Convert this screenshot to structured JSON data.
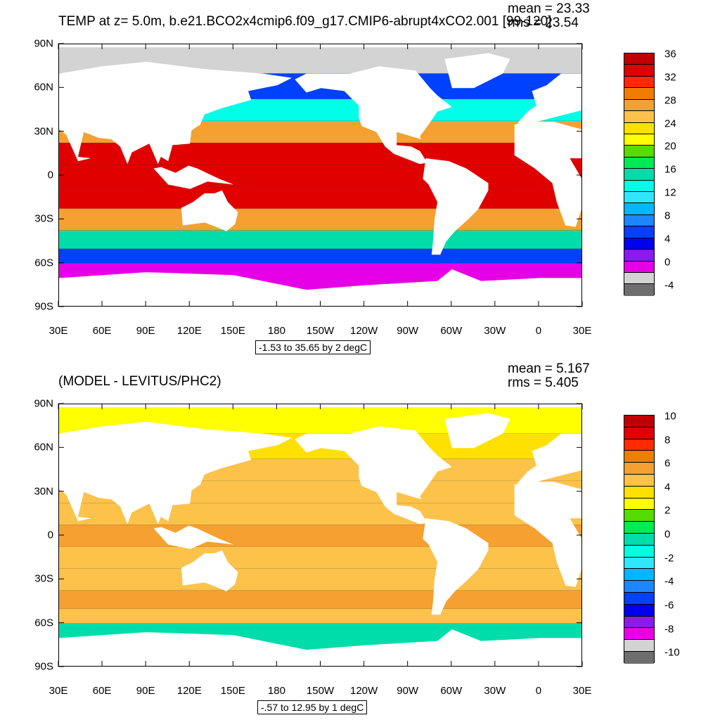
{
  "chart_data": [
    {
      "type": "heatmap",
      "title": "TEMP at z=   5.0m, b.e21.BCO2x4cmip6.f09_g17.CMIP6-abrupt4xCO2.001 [99-120]",
      "mean_label": "mean = 23.33",
      "rms_label": "rms = 23.54",
      "x_tick_labels": [
        "30E",
        "60E",
        "90E",
        "120E",
        "150E",
        "180",
        "150W",
        "120W",
        "90W",
        "60W",
        "30W",
        "0",
        "30E"
      ],
      "y_tick_labels": [
        "90N",
        "60N",
        "30N",
        "0",
        "30S",
        "60S",
        "90S"
      ],
      "xlim": [
        30,
        390
      ],
      "ylim": [
        -90,
        90
      ],
      "range_label": "-1.53 to 35.65 by 2 degC",
      "colorbar_labels": [
        "36",
        "32",
        "28",
        "24",
        "20",
        "16",
        "12",
        "8",
        "4",
        "0",
        "-4"
      ],
      "colorbar_colors": [
        "#c00000",
        "#e00000",
        "#ff2a00",
        "#f07d00",
        "#f5a030",
        "#fcc24a",
        "#ffe000",
        "#ffff00",
        "#55dd00",
        "#00ea55",
        "#00ddaa",
        "#00ffe6",
        "#30e6ff",
        "#00b8ff",
        "#1c86ff",
        "#0040ff",
        "#0000ee",
        "#8a1be8",
        "#e600e6",
        "#d3d3d3",
        "#6e6e6e"
      ],
      "latitude_bands": [
        {
          "lat": 80,
          "value": -1
        },
        {
          "lat": 60,
          "value": 6
        },
        {
          "lat": 45,
          "value": 15
        },
        {
          "lat": 30,
          "value": 27
        },
        {
          "lat": 15,
          "value": 33
        },
        {
          "lat": 0,
          "value": 34
        },
        {
          "lat": -15,
          "value": 33
        },
        {
          "lat": -30,
          "value": 27
        },
        {
          "lat": -45,
          "value": 16
        },
        {
          "lat": -55,
          "value": 6
        },
        {
          "lat": -65,
          "value": 0
        }
      ]
    },
    {
      "type": "heatmap",
      "title": "(MODEL - LEVITUS/PHC2)",
      "mean_label": "mean = 5.167",
      "rms_label": "rms = 5.405",
      "x_tick_labels": [
        "30E",
        "60E",
        "90E",
        "120E",
        "150E",
        "180",
        "150W",
        "120W",
        "90W",
        "60W",
        "30W",
        "0",
        "30E"
      ],
      "y_tick_labels": [
        "90N",
        "60N",
        "30N",
        "0",
        "30S",
        "60S",
        "90S"
      ],
      "xlim": [
        30,
        390
      ],
      "ylim": [
        -90,
        90
      ],
      "range_label": "-.57 to 12.95 by 1 degC",
      "colorbar_labels": [
        "10",
        "8",
        "6",
        "4",
        "2",
        "0",
        "-2",
        "-4",
        "-6",
        "-8",
        "-10"
      ],
      "colorbar_colors": [
        "#c00000",
        "#e00000",
        "#ff2a00",
        "#f07d00",
        "#f5a030",
        "#fcc24a",
        "#ffe000",
        "#ffff00",
        "#55dd00",
        "#00ea55",
        "#00ddaa",
        "#00ffe6",
        "#30e6ff",
        "#00b8ff",
        "#1c86ff",
        "#0040ff",
        "#0000ee",
        "#8a1be8",
        "#e600e6",
        "#d3d3d3",
        "#6e6e6e"
      ],
      "latitude_bands": [
        {
          "lat": 80,
          "value": 3
        },
        {
          "lat": 60,
          "value": 4
        },
        {
          "lat": 45,
          "value": 5
        },
        {
          "lat": 30,
          "value": 5
        },
        {
          "lat": 15,
          "value": 5
        },
        {
          "lat": 0,
          "value": 6
        },
        {
          "lat": -15,
          "value": 5
        },
        {
          "lat": -30,
          "value": 5
        },
        {
          "lat": -45,
          "value": 6
        },
        {
          "lat": -55,
          "value": 5
        },
        {
          "lat": -65,
          "value": 0
        }
      ]
    }
  ]
}
